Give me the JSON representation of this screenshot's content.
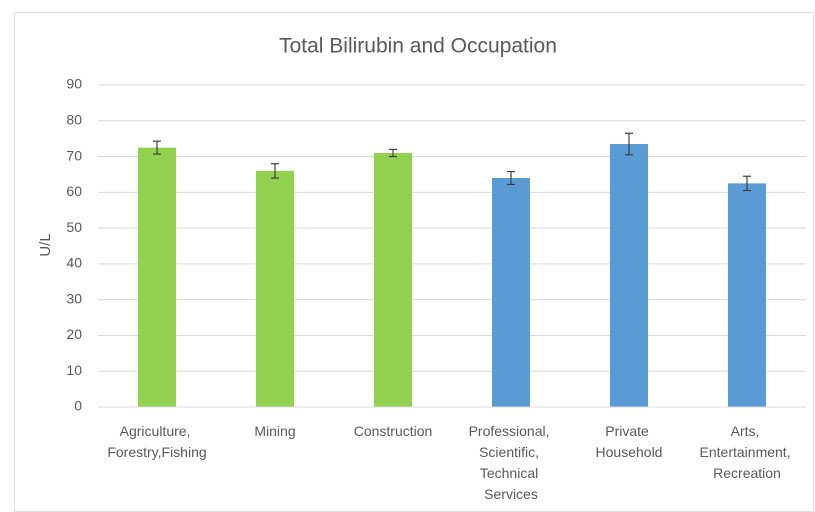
{
  "chart_data": {
    "type": "bar",
    "title": "Total Bilirubin and Occupation",
    "y_label": "U/L",
    "categories": [
      "Agriculture, Forestry,Fishing",
      "Mining",
      "Construction",
      "Professional, Scientific, Technical Services",
      "Private Household",
      "Arts, Entertainment, Recreation"
    ],
    "values": [
      72.5,
      66,
      71,
      64,
      73.5,
      62.5
    ],
    "errors": [
      1.8,
      2,
      1,
      1.8,
      3,
      2
    ],
    "colors": [
      "#92d050",
      "#92d050",
      "#92d050",
      "#5b9bd5",
      "#5b9bd5",
      "#5b9bd5"
    ],
    "ylim": [
      0,
      90
    ],
    "yticks": [
      0,
      10,
      20,
      30,
      40,
      50,
      60,
      70,
      80,
      90
    ],
    "grid": true
  }
}
